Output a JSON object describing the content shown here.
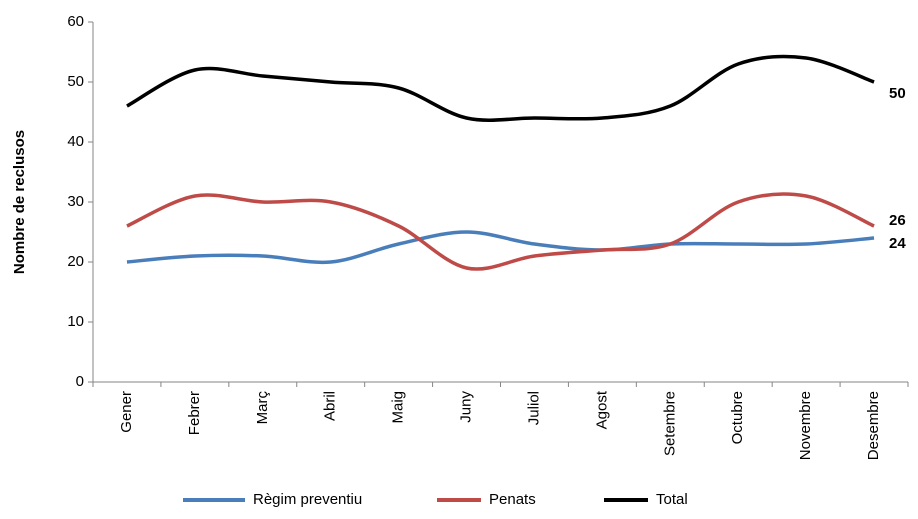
{
  "chart_data": {
    "type": "line",
    "ylabel": "Nombre de reclusos",
    "categories": [
      "Gener",
      "Febrer",
      "Març",
      "Abril",
      "Maig",
      "Juny",
      "Juliol",
      "Agost",
      "Setembre",
      "Octubre",
      "Novembre",
      "Desembre"
    ],
    "series": [
      {
        "name": "Règim preventiu",
        "color": "#4a7ebb",
        "values": [
          20,
          21,
          21,
          20,
          23,
          25,
          23,
          22,
          23,
          23,
          23,
          24
        ]
      },
      {
        "name": "Penats",
        "color": "#be4b48",
        "values": [
          26,
          31,
          30,
          30,
          26,
          19,
          21,
          22,
          23,
          30,
          31,
          26
        ]
      },
      {
        "name": "Total",
        "color": "#000000",
        "values": [
          46,
          52,
          51,
          50,
          49,
          44,
          44,
          44,
          46,
          53,
          54,
          50
        ]
      }
    ],
    "ylim": [
      0,
      60
    ],
    "yticks": [
      0,
      10,
      20,
      30,
      40,
      50,
      60
    ],
    "smooth": true,
    "legend": "bottom"
  }
}
